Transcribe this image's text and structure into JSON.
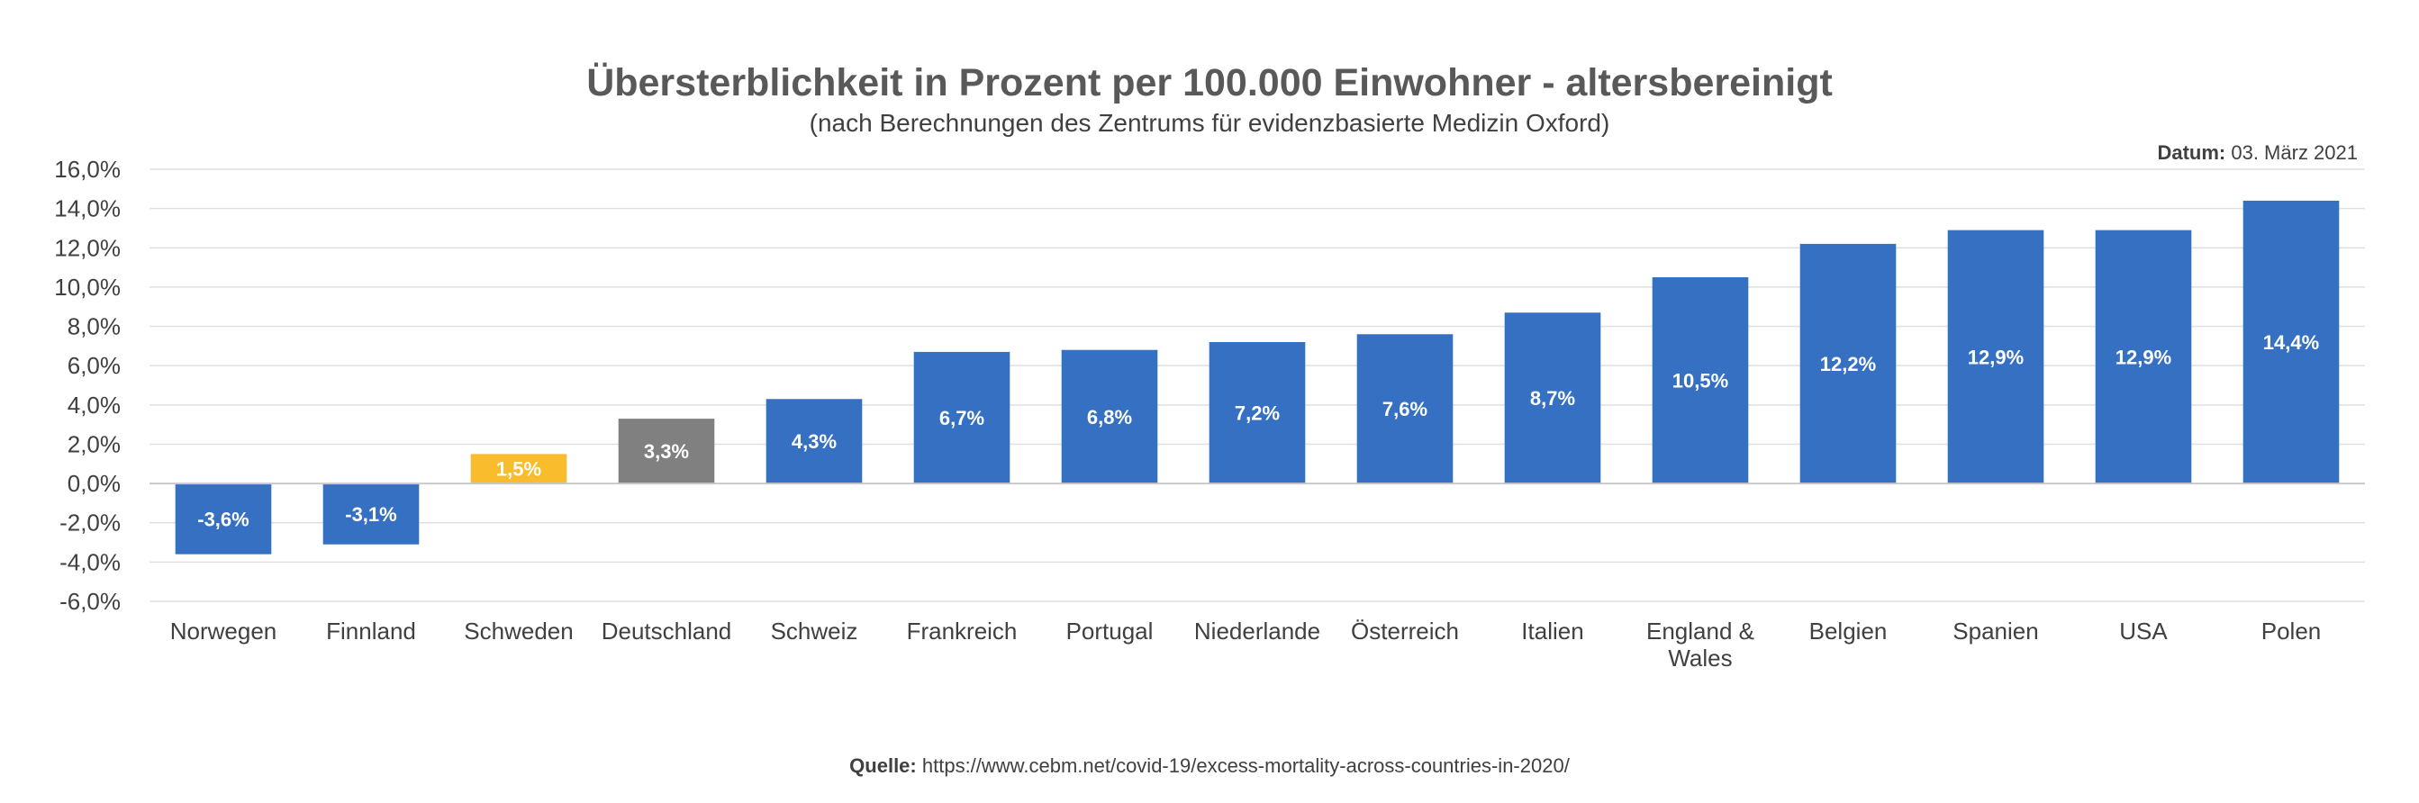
{
  "chart_data": {
    "type": "bar",
    "title": "Übersterblichkeit in Prozent per 100.000 Einwohner - altersbereinigt",
    "subtitle": "(nach Berechnungen des Zentrums für evidenzbasierte Medizin Oxford)",
    "date_label": "Datum:",
    "date_value": "03. März 2021",
    "source_label": "Quelle:",
    "source_value": "https://www.cebm.net/covid-19/excess-mortality-across-countries-in-2020/",
    "categories": [
      [
        "Norwegen"
      ],
      [
        "Finnland"
      ],
      [
        "Schweden"
      ],
      [
        "Deutschland"
      ],
      [
        "Schweiz"
      ],
      [
        "Frankreich"
      ],
      [
        "Portugal"
      ],
      [
        "Niederlande"
      ],
      [
        "Österreich"
      ],
      [
        "Italien"
      ],
      [
        "England &",
        "Wales"
      ],
      [
        "Belgien"
      ],
      [
        "Spanien"
      ],
      [
        "USA"
      ],
      [
        "Polen"
      ]
    ],
    "values": [
      -3.6,
      -3.1,
      1.5,
      3.3,
      4.3,
      6.7,
      6.8,
      7.2,
      7.6,
      8.7,
      10.5,
      12.2,
      12.9,
      12.9,
      14.4
    ],
    "value_labels": [
      "-3,6%",
      "-3,1%",
      "1,5%",
      "3,3%",
      "4,3%",
      "6,7%",
      "6,8%",
      "7,2%",
      "7,6%",
      "8,7%",
      "10,5%",
      "12,2%",
      "12,9%",
      "12,9%",
      "14,4%"
    ],
    "bar_colors": [
      "#3670C2",
      "#3670C2",
      "#F8BC2C",
      "#808080",
      "#3670C2",
      "#3670C2",
      "#3670C2",
      "#3670C2",
      "#3670C2",
      "#3670C2",
      "#3670C2",
      "#3670C2",
      "#3670C2",
      "#3670C2",
      "#3670C2"
    ],
    "y_ticks": [
      16,
      14,
      12,
      10,
      8,
      6,
      4,
      2,
      0,
      -2,
      -4,
      -6
    ],
    "y_tick_labels": [
      "16,0%",
      "14,0%",
      "12,0%",
      "10,0%",
      "8,0%",
      "6,0%",
      "4,0%",
      "2,0%",
      "0,0%",
      "-2,0%",
      "-4,0%",
      "-6,0%"
    ],
    "ylim": [
      -6,
      16
    ],
    "grid": true,
    "legend": "none"
  }
}
